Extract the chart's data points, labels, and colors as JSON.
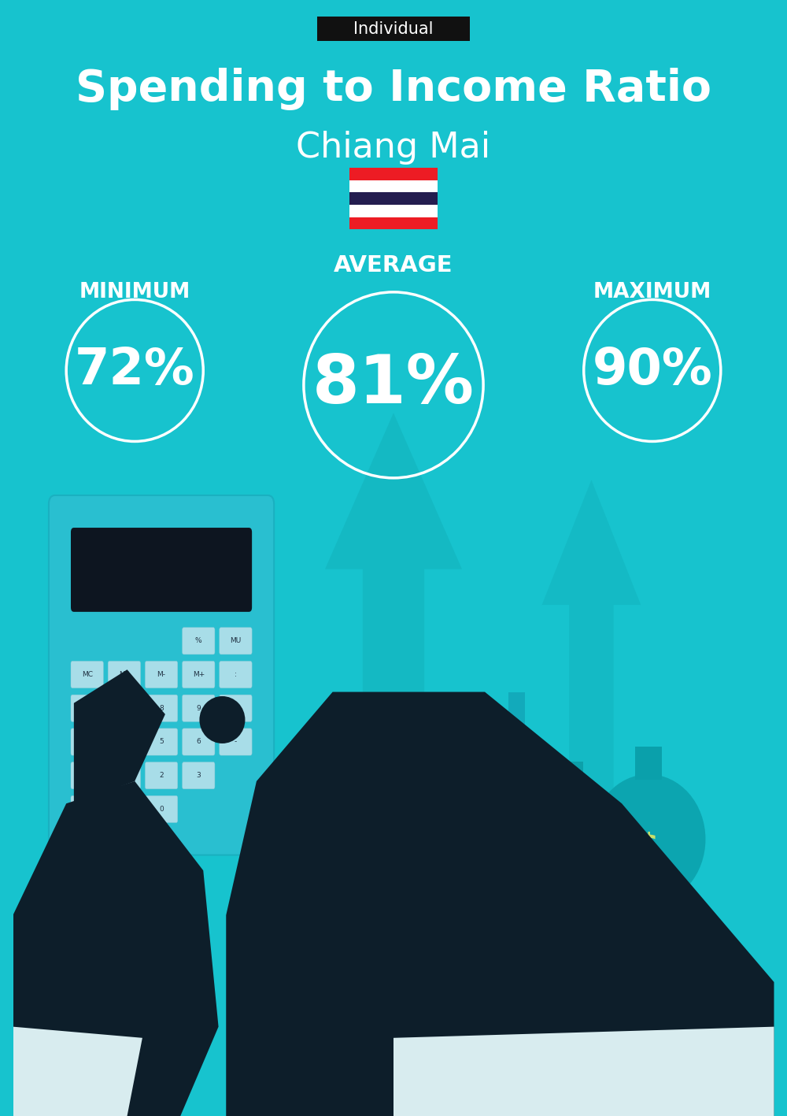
{
  "title": "Spending to Income Ratio",
  "subtitle": "Chiang Mai",
  "tag_label": "Individual",
  "bg_color": "#17C3CE",
  "tag_bg_color": "#111111",
  "tag_text_color": "#ffffff",
  "title_color": "#ffffff",
  "subtitle_color": "#ffffff",
  "circle_edge_color": "#ffffff",
  "label_color": "#ffffff",
  "value_color": "#ffffff",
  "min_label": "MINIMUM",
  "avg_label": "AVERAGE",
  "max_label": "MAXIMUM",
  "min_value": "72%",
  "avg_value": "81%",
  "max_value": "90%",
  "flag_colors": [
    "#ED1C24",
    "#ffffff",
    "#241D4F",
    "#ffffff",
    "#ED1C24"
  ],
  "arrow_color": "#13B5BF",
  "calc_body_color": "#29BFD0",
  "calc_screen_color": "#0D1520",
  "btn_color": "#A8DDE8",
  "hand_color": "#0D1E2A",
  "cuff_color": "#D8ECEF",
  "house_color": "#12AABB",
  "money_bag_color": "#0FA8B8",
  "dollar_color": "#C8E06A",
  "figsize": [
    10.0,
    14.17
  ],
  "dpi": 100
}
